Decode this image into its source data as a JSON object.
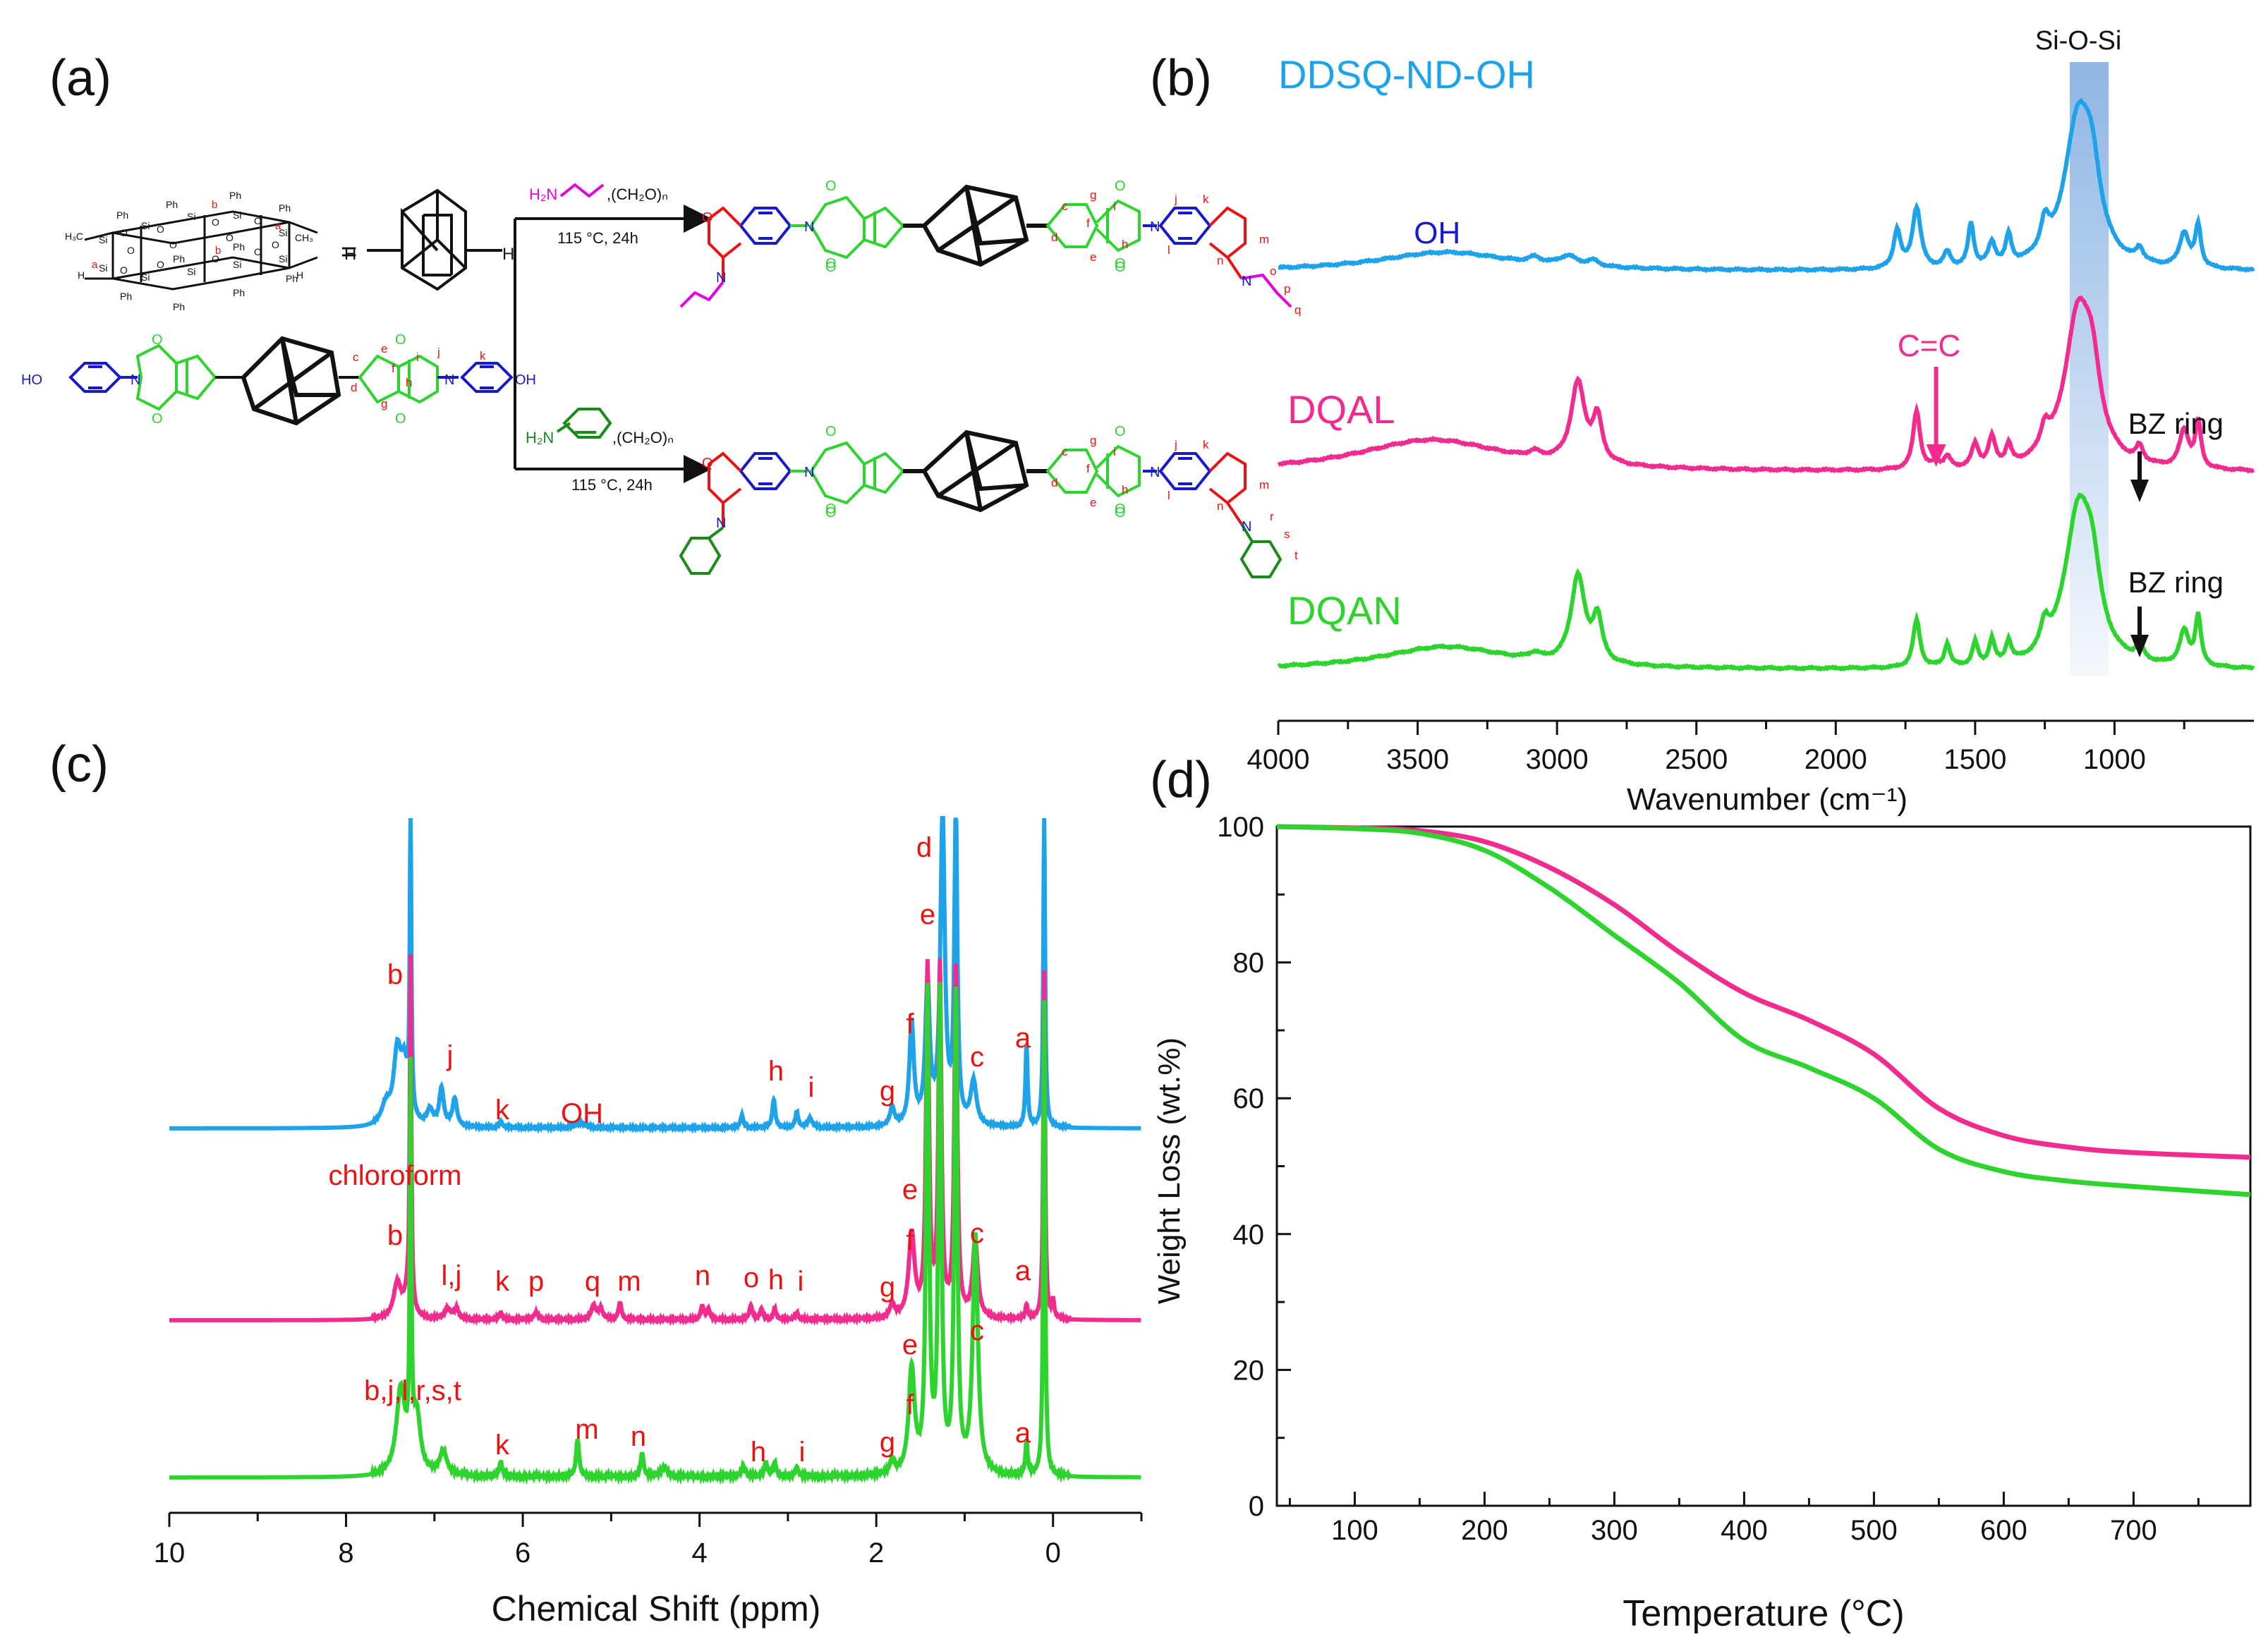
{
  "colors": {
    "blue": "#1ea3ea",
    "pink": "#f22c8e",
    "green": "#2ed42e",
    "red": "#ee1111",
    "navy": "#1818cc",
    "magenta": "#e400e4",
    "dkgreen": "#1a8a1a",
    "black": "#111111",
    "band": "#8fb6e4"
  },
  "panels": {
    "a": {
      "label": "(a)",
      "cage_labels": [
        "Ph",
        "Ph",
        "Ph",
        "Ph",
        "Ph",
        "Ph",
        "Ph",
        "Ph",
        "Ph",
        "Ph",
        "H₃C",
        "CH₃",
        "H",
        "H",
        "Si",
        "Si",
        "Si",
        "Si",
        "Si",
        "Si",
        "Si",
        "Si",
        "Si",
        "Si",
        "O",
        "O",
        "O",
        "O",
        "O",
        "O",
        "O",
        "O",
        "O",
        "O",
        "O",
        "O",
        "b",
        "b",
        "a",
        "a"
      ],
      "equals": "=",
      "adamantane_h_left": "H",
      "adamantane_h_right": "H",
      "diol_ho": "HO",
      "diol_oh": "OH",
      "diol_n": [
        "N",
        "N"
      ],
      "diol_o": [
        "O",
        "O",
        "O",
        "O"
      ],
      "diol_letters": [
        "c",
        "e",
        "f",
        "i",
        "d",
        "g",
        "h",
        "j",
        "k"
      ],
      "top_reagent": "H₂N",
      "top_formaldehyde": ",(CH₂O)ₙ",
      "top_conditions": "115 °C,  24h",
      "bottom_reagent": "H₂N",
      "bottom_formaldehyde": ",(CH₂O)ₙ",
      "bottom_conditions": "115 °C,  24h",
      "product_atoms": [
        "O",
        "N",
        "O",
        "O",
        "N",
        "O",
        "O",
        "N",
        "O",
        "O",
        "N",
        "O",
        "O",
        "N",
        "O",
        "O",
        "N",
        "O"
      ],
      "top_product_letters": [
        "c",
        "g",
        "i",
        "j",
        "k",
        "d",
        "f",
        "e",
        "h",
        "l",
        "n",
        "m",
        "o",
        "p",
        "q"
      ],
      "bottom_product_letters": [
        "c",
        "g",
        "i",
        "j",
        "k",
        "d",
        "f",
        "e",
        "h",
        "l",
        "n",
        "m",
        "r",
        "s",
        "t"
      ]
    },
    "b": {
      "label": "(b)",
      "chart_data": {
        "type": "line",
        "title": "",
        "xlabel": "Wavenumber (cm⁻¹)",
        "ylabel": "",
        "xlim": [
          4000,
          500
        ],
        "xticks": [
          "4000",
          "3500",
          "3000",
          "2500",
          "2000",
          "1500",
          "1000"
        ],
        "series": [
          {
            "name": "DDSQ-ND-OH",
            "color": "#1ea3ea",
            "peaks": [
              [
                3400,
                0.1,
                300
              ],
              [
                3080,
                0.03,
                25
              ],
              [
                2960,
                0.05,
                40
              ],
              [
                2870,
                0.03,
                25
              ],
              [
                1780,
                0.2,
                15
              ],
              [
                1710,
                0.32,
                18
              ],
              [
                1600,
                0.08,
                15
              ],
              [
                1515,
                0.23,
                12
              ],
              [
                1440,
                0.12,
                15
              ],
              [
                1380,
                0.15,
                12
              ],
              [
                1250,
                0.15,
                18
              ],
              [
                1130,
                0.78,
                60
              ],
              [
                1080,
                0.3,
                35
              ],
              [
                910,
                0.07,
                15
              ],
              [
                750,
                0.18,
                20
              ],
              [
                700,
                0.22,
                12
              ]
            ]
          },
          {
            "name": "DQAL",
            "color": "#f22c8e",
            "peaks": [
              [
                3450,
                0.17,
                330
              ],
              [
                3080,
                0.03,
                25
              ],
              [
                2925,
                0.42,
                30
              ],
              [
                2855,
                0.23,
                20
              ],
              [
                1710,
                0.31,
                15
              ],
              [
                1640,
                0.04,
                12
              ],
              [
                1600,
                0.06,
                15
              ],
              [
                1500,
                0.12,
                15
              ],
              [
                1440,
                0.15,
                15
              ],
              [
                1380,
                0.1,
                12
              ],
              [
                1250,
                0.12,
                18
              ],
              [
                1130,
                0.8,
                60
              ],
              [
                1080,
                0.3,
                35
              ],
              [
                910,
                0.08,
                15
              ],
              [
                750,
                0.2,
                20
              ],
              [
                700,
                0.24,
                12
              ]
            ]
          },
          {
            "name": "DQAN",
            "color": "#2ed42e",
            "peaks": [
              [
                3400,
                0.12,
                280
              ],
              [
                3080,
                0.03,
                25
              ],
              [
                2925,
                0.46,
                30
              ],
              [
                2855,
                0.23,
                20
              ],
              [
                1710,
                0.25,
                15
              ],
              [
                1600,
                0.12,
                12
              ],
              [
                1500,
                0.12,
                12
              ],
              [
                1440,
                0.13,
                12
              ],
              [
                1380,
                0.11,
                12
              ],
              [
                1250,
                0.13,
                18
              ],
              [
                1130,
                0.8,
                60
              ],
              [
                1080,
                0.3,
                35
              ],
              [
                910,
                0.08,
                15
              ],
              [
                750,
                0.18,
                20
              ],
              [
                700,
                0.26,
                12
              ]
            ]
          }
        ],
        "annotations": [
          {
            "text": "Si-O-Si",
            "x": 1130
          },
          {
            "text": "OH",
            "x": 3430
          },
          {
            "text": "C=C",
            "x": 1640
          },
          {
            "text": "BZ ring",
            "x": 910
          },
          {
            "text": "BZ ring",
            "x": 910
          }
        ],
        "band_range": [
          1200,
          1060
        ]
      }
    },
    "c": {
      "label": "(c)",
      "chart_data": {
        "type": "line",
        "title": "",
        "xlabel": "Chemical Shift (ppm)",
        "ylabel": "",
        "xlim": [
          10,
          -1
        ],
        "xticks": [
          "10",
          "8",
          "6",
          "4",
          "2",
          "0"
        ],
        "series": [
          {
            "name": "DDSQ-ND-OH",
            "color": "#1ea3ea",
            "peaks": [
              [
                7.27,
                1.0,
                0.01
              ],
              [
                7.42,
                0.22,
                0.05
              ],
              [
                7.34,
                0.17,
                0.05
              ],
              [
                7.55,
                0.06,
                0.06
              ],
              [
                7.05,
                0.05,
                0.04
              ],
              [
                6.92,
                0.12,
                0.03
              ],
              [
                6.77,
                0.09,
                0.03
              ],
              [
                6.25,
                0.02,
                0.02
              ],
              [
                5.35,
                0.015,
                0.06
              ],
              [
                3.52,
                0.04,
                0.02
              ],
              [
                3.16,
                0.09,
                0.02
              ],
              [
                2.9,
                0.05,
                0.02
              ],
              [
                2.75,
                0.03,
                0.03
              ],
              [
                1.82,
                0.06,
                0.03
              ],
              [
                1.6,
                0.33,
                0.03
              ],
              [
                1.42,
                0.45,
                0.03
              ],
              [
                1.25,
                1.0,
                0.03
              ],
              [
                1.1,
                1.0,
                0.02
              ],
              [
                0.9,
                0.14,
                0.04
              ],
              [
                0.3,
                0.26,
                0.015
              ],
              [
                0.1,
                1.0,
                0.012
              ]
            ]
          },
          {
            "name": "DQAL",
            "color": "#f22c8e",
            "peaks": [
              [
                7.27,
                1.0,
                0.01
              ],
              [
                7.42,
                0.1,
                0.05
              ],
              [
                7.3,
                0.07,
                0.05
              ],
              [
                6.85,
                0.03,
                0.04
              ],
              [
                6.75,
                0.03,
                0.03
              ],
              [
                6.25,
                0.02,
                0.02
              ],
              [
                5.85,
                0.02,
                0.03
              ],
              [
                5.2,
                0.04,
                0.03
              ],
              [
                5.12,
                0.03,
                0.03
              ],
              [
                4.9,
                0.05,
                0.02
              ],
              [
                3.97,
                0.04,
                0.02
              ],
              [
                3.9,
                0.03,
                0.02
              ],
              [
                3.42,
                0.04,
                0.02
              ],
              [
                3.3,
                0.03,
                0.02
              ],
              [
                3.15,
                0.03,
                0.02
              ],
              [
                2.9,
                0.02,
                0.02
              ],
              [
                1.82,
                0.04,
                0.03
              ],
              [
                1.6,
                0.24,
                0.04
              ],
              [
                1.42,
                1.0,
                0.02
              ],
              [
                1.28,
                1.0,
                0.02
              ],
              [
                1.1,
                1.0,
                0.02
              ],
              [
                0.88,
                0.22,
                0.035
              ],
              [
                0.3,
                0.04,
                0.015
              ],
              [
                0.1,
                1.0,
                0.012
              ],
              [
                0.0,
                0.05,
                0.015
              ]
            ]
          },
          {
            "name": "DQAN",
            "color": "#2ed42e",
            "peaks": [
              [
                7.27,
                0.8,
                0.01
              ],
              [
                7.38,
                0.18,
                0.06
              ],
              [
                7.2,
                0.12,
                0.05
              ],
              [
                6.9,
                0.05,
                0.05
              ],
              [
                6.25,
                0.03,
                0.02
              ],
              [
                5.38,
                0.08,
                0.02
              ],
              [
                4.65,
                0.05,
                0.02
              ],
              [
                4.4,
                0.02,
                0.04
              ],
              [
                3.5,
                0.02,
                0.03
              ],
              [
                3.25,
                0.03,
                0.02
              ],
              [
                3.15,
                0.03,
                0.02
              ],
              [
                2.9,
                0.02,
                0.02
              ],
              [
                1.82,
                0.03,
                0.03
              ],
              [
                1.6,
                0.22,
                0.04
              ],
              [
                1.42,
                1.0,
                0.02
              ],
              [
                1.28,
                1.0,
                0.02
              ],
              [
                1.1,
                1.0,
                0.02
              ],
              [
                0.88,
                0.5,
                0.035
              ],
              [
                0.3,
                0.07,
                0.015
              ],
              [
                0.1,
                1.0,
                0.012
              ]
            ]
          }
        ],
        "peak_labels": {
          "DDSQ-ND-OH": [
            "b",
            "j",
            "k",
            "OH",
            "h",
            "i",
            "g",
            "f",
            "e",
            "d",
            "c",
            "a"
          ],
          "DQAL": [
            "chloroform",
            "b",
            "l,j",
            "k",
            "p",
            "q",
            "m",
            "n",
            "o",
            "h",
            "i",
            "g",
            "f",
            "e",
            "c",
            "a"
          ],
          "DQAN": [
            "b,j,l,r,s,t",
            "k",
            "m",
            "n",
            "h",
            "i",
            "g",
            "f",
            "e",
            "c",
            "a"
          ]
        }
      }
    },
    "d": {
      "label": "(d)",
      "chart_data": {
        "type": "line",
        "title": "",
        "xlabel": "Temperature (°C)",
        "ylabel": "Weight Loss (wt.%)",
        "xlim": [
          40,
          790
        ],
        "ylim": [
          0,
          100
        ],
        "xticks": [
          "100",
          "200",
          "300",
          "400",
          "500",
          "600",
          "700"
        ],
        "yticks": [
          "0",
          "20",
          "40",
          "60",
          "80",
          "100"
        ],
        "x": [
          40,
          100,
          150,
          200,
          250,
          300,
          350,
          400,
          450,
          500,
          550,
          600,
          650,
          700,
          790
        ],
        "series": [
          {
            "name": "DQAL",
            "color": "#f22c8e",
            "values": [
              100,
              99.8,
              99.4,
              97.8,
              94,
              88.5,
              81.5,
              75.5,
              71.5,
              66.5,
              58.5,
              54.5,
              52.8,
              52.0,
              51.3
            ]
          },
          {
            "name": "DQAN",
            "color": "#2ed42e",
            "values": [
              100,
              99.7,
              99.0,
              96.5,
              91,
              84,
              77,
              68.5,
              64.5,
              60,
              52.5,
              49.2,
              47.8,
              47.0,
              45.8
            ]
          }
        ]
      }
    }
  }
}
